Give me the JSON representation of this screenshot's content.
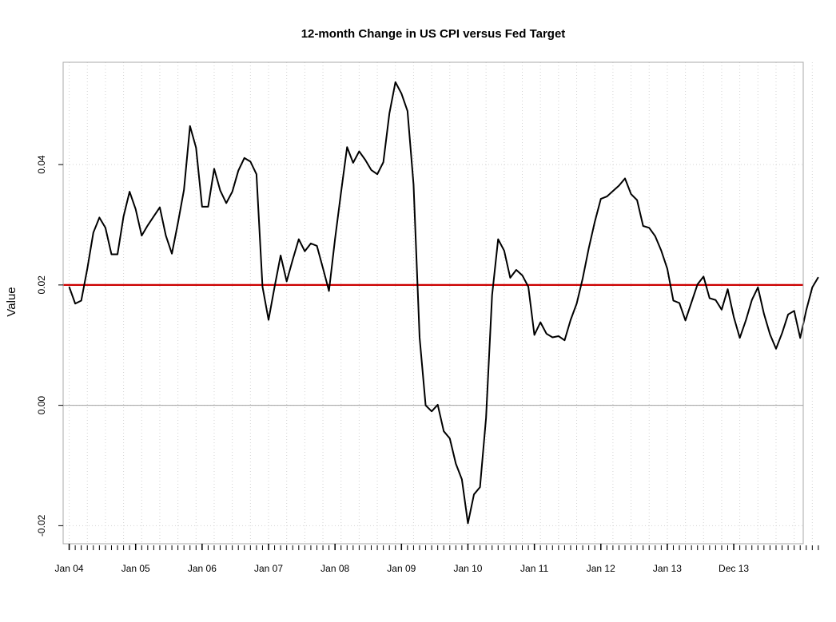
{
  "chart_data": {
    "type": "line",
    "title": "12-month Change in US CPI versus Fed Target",
    "xlabel": "",
    "ylabel": "Value",
    "ylim": [
      -0.023,
      0.057
    ],
    "xlim": [
      -1.0,
      121.5
    ],
    "grid": true,
    "x_tick_labels": [
      {
        "label": "Jan 04",
        "month_index": 0
      },
      {
        "label": "Jan 05",
        "month_index": 11
      },
      {
        "label": "Jan 06",
        "month_index": 22
      },
      {
        "label": "Jan 07",
        "month_index": 33
      },
      {
        "label": "Jan 08",
        "month_index": 44
      },
      {
        "label": "Jan 09",
        "month_index": 55
      },
      {
        "label": "Jan 10",
        "month_index": 66
      },
      {
        "label": "Jan 11",
        "month_index": 77
      },
      {
        "label": "Jan 12",
        "month_index": 88
      },
      {
        "label": "Jan 13",
        "month_index": 99
      },
      {
        "label": "Dec 13",
        "month_index": 110
      }
    ],
    "y_ticks": [
      {
        "value": -0.02,
        "label": "-0.02"
      },
      {
        "value": 0.0,
        "label": "0.00"
      },
      {
        "value": 0.02,
        "label": "0.02"
      },
      {
        "value": 0.04,
        "label": "0.04"
      }
    ],
    "series": [
      {
        "color": "#000000",
        "values": [
          0.0197,
          0.0169,
          0.0174,
          0.0227,
          0.0287,
          0.0312,
          0.0295,
          0.0251,
          0.0251,
          0.0314,
          0.0355,
          0.0326,
          0.0282,
          0.0299,
          0.0314,
          0.0329,
          0.0282,
          0.0252,
          0.0303,
          0.0358,
          0.0464,
          0.0428,
          0.033,
          0.033,
          0.0393,
          0.0357,
          0.0336,
          0.0355,
          0.039,
          0.0411,
          0.0405,
          0.0384,
          0.0197,
          0.0142,
          0.0197,
          0.0249,
          0.0206,
          0.0242,
          0.0276,
          0.0256,
          0.0269,
          0.0265,
          0.0228,
          0.019,
          0.0276,
          0.0354,
          0.0429,
          0.0403,
          0.0422,
          0.0408,
          0.0391,
          0.0384,
          0.0404,
          0.0485,
          0.0537,
          0.0518,
          0.0489,
          0.0367,
          0.0113,
          0.0,
          -0.001,
          0.0001,
          -0.0043,
          -0.0055,
          -0.0097,
          -0.0123,
          -0.0196,
          -0.0148,
          -0.0136,
          -0.0021,
          0.0183,
          0.0276,
          0.0257,
          0.0212,
          0.0225,
          0.0216,
          0.0197,
          0.0117,
          0.0138,
          0.0119,
          0.0113,
          0.0115,
          0.0108,
          0.0142,
          0.0169,
          0.0211,
          0.0261,
          0.0305,
          0.0343,
          0.0347,
          0.0356,
          0.0365,
          0.0377,
          0.0351,
          0.0341,
          0.0298,
          0.0295,
          0.0281,
          0.0257,
          0.0227,
          0.0174,
          0.017,
          0.0141,
          0.0171,
          0.0201,
          0.0214,
          0.0178,
          0.0175,
          0.0159,
          0.0193,
          0.0147,
          0.0112,
          0.0141,
          0.0175,
          0.0196,
          0.0152,
          0.0118,
          0.0094,
          0.012,
          0.0151,
          0.0157,
          0.0112,
          0.0158,
          0.0196,
          0.0213
        ]
      }
    ],
    "reference_lines": [
      {
        "value": 0.02,
        "color": "#cc0000"
      },
      {
        "value": 0.0,
        "color": "#a0a0a0"
      }
    ]
  }
}
